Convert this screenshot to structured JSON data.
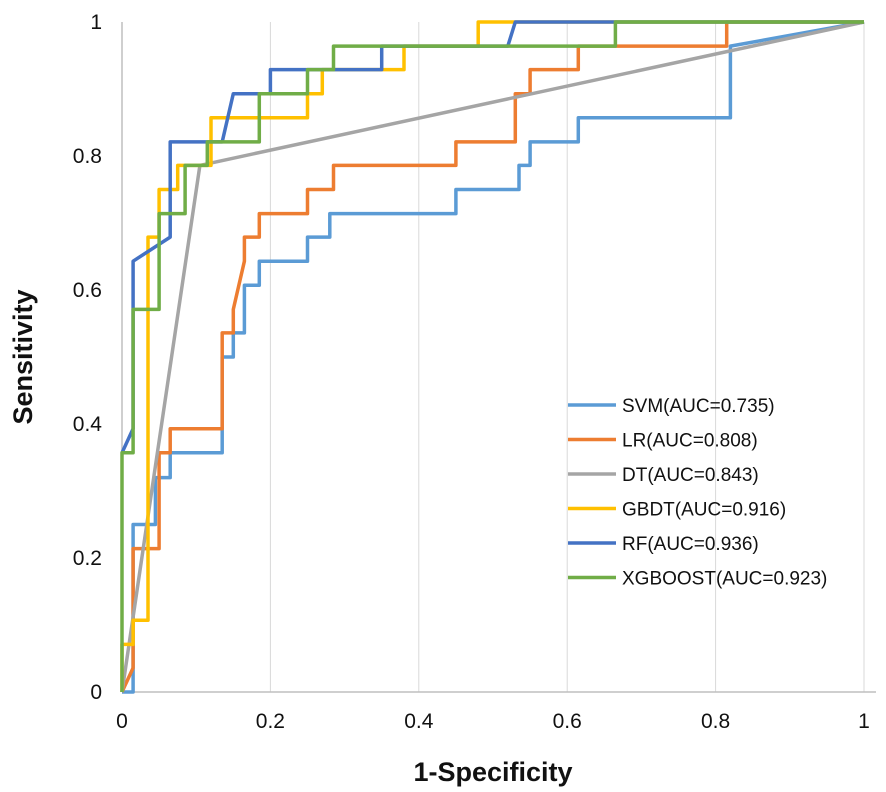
{
  "chart_data": {
    "type": "line",
    "title": "",
    "xlabel": "1-Specificity",
    "ylabel": "Sensitivity",
    "xlim": [
      0,
      1
    ],
    "ylim": [
      0,
      1
    ],
    "xticks": [
      "0",
      "0.2",
      "0.4",
      "0.6",
      "0.8",
      "1"
    ],
    "yticks": [
      "0",
      "0.2",
      "0.4",
      "0.6",
      "0.8",
      "1"
    ],
    "grid": "vertical",
    "legend_position": "bottom-right",
    "series": [
      {
        "name": "SVM(AUC=0.735)",
        "color": "#5b9bd5",
        "points": [
          [
            0,
            0
          ],
          [
            0.015,
            0
          ],
          [
            0.015,
            0.25
          ],
          [
            0.045,
            0.25
          ],
          [
            0.045,
            0.32
          ],
          [
            0.065,
            0.32
          ],
          [
            0.065,
            0.357
          ],
          [
            0.135,
            0.357
          ],
          [
            0.135,
            0.5
          ],
          [
            0.15,
            0.5
          ],
          [
            0.15,
            0.536
          ],
          [
            0.165,
            0.536
          ],
          [
            0.165,
            0.607
          ],
          [
            0.185,
            0.607
          ],
          [
            0.185,
            0.643
          ],
          [
            0.25,
            0.643
          ],
          [
            0.25,
            0.679
          ],
          [
            0.28,
            0.679
          ],
          [
            0.28,
            0.714
          ],
          [
            0.45,
            0.714
          ],
          [
            0.45,
            0.75
          ],
          [
            0.535,
            0.75
          ],
          [
            0.535,
            0.786
          ],
          [
            0.55,
            0.786
          ],
          [
            0.55,
            0.821
          ],
          [
            0.615,
            0.821
          ],
          [
            0.615,
            0.857
          ],
          [
            0.82,
            0.857
          ],
          [
            0.82,
            0.964
          ],
          [
            1,
            1
          ]
        ]
      },
      {
        "name": "LR(AUC=0.808)",
        "color": "#ed7d31",
        "points": [
          [
            0,
            0
          ],
          [
            0.015,
            0.036
          ],
          [
            0.015,
            0.214
          ],
          [
            0.05,
            0.214
          ],
          [
            0.05,
            0.357
          ],
          [
            0.065,
            0.357
          ],
          [
            0.065,
            0.393
          ],
          [
            0.135,
            0.393
          ],
          [
            0.135,
            0.536
          ],
          [
            0.15,
            0.536
          ],
          [
            0.15,
            0.571
          ],
          [
            0.165,
            0.643
          ],
          [
            0.165,
            0.679
          ],
          [
            0.185,
            0.679
          ],
          [
            0.185,
            0.714
          ],
          [
            0.25,
            0.714
          ],
          [
            0.25,
            0.75
          ],
          [
            0.285,
            0.75
          ],
          [
            0.285,
            0.786
          ],
          [
            0.45,
            0.786
          ],
          [
            0.45,
            0.821
          ],
          [
            0.53,
            0.821
          ],
          [
            0.53,
            0.893
          ],
          [
            0.55,
            0.893
          ],
          [
            0.55,
            0.929
          ],
          [
            0.615,
            0.929
          ],
          [
            0.615,
            0.964
          ],
          [
            0.815,
            0.964
          ],
          [
            0.815,
            1
          ],
          [
            1,
            1
          ]
        ]
      },
      {
        "name": "DT(AUC=0.843)",
        "color": "#a5a5a5",
        "points": [
          [
            0,
            0
          ],
          [
            0.105,
            0.786
          ],
          [
            1,
            1
          ]
        ]
      },
      {
        "name": "GBDT(AUC=0.916)",
        "color": "#ffc000",
        "points": [
          [
            0,
            0
          ],
          [
            0,
            0.071
          ],
          [
            0.015,
            0.071
          ],
          [
            0.015,
            0.107
          ],
          [
            0.035,
            0.107
          ],
          [
            0.035,
            0.679
          ],
          [
            0.05,
            0.679
          ],
          [
            0.05,
            0.75
          ],
          [
            0.075,
            0.75
          ],
          [
            0.075,
            0.786
          ],
          [
            0.12,
            0.786
          ],
          [
            0.12,
            0.857
          ],
          [
            0.25,
            0.857
          ],
          [
            0.25,
            0.893
          ],
          [
            0.27,
            0.893
          ],
          [
            0.27,
            0.929
          ],
          [
            0.38,
            0.929
          ],
          [
            0.38,
            0.964
          ],
          [
            0.48,
            0.964
          ],
          [
            0.48,
            1
          ],
          [
            1,
            1
          ]
        ]
      },
      {
        "name": "RF(AUC=0.936)",
        "color": "#4472c4",
        "points": [
          [
            0,
            0.357
          ],
          [
            0.015,
            0.393
          ],
          [
            0.015,
            0.643
          ],
          [
            0.065,
            0.679
          ],
          [
            0.065,
            0.821
          ],
          [
            0.135,
            0.821
          ],
          [
            0.15,
            0.893
          ],
          [
            0.2,
            0.893
          ],
          [
            0.2,
            0.929
          ],
          [
            0.35,
            0.929
          ],
          [
            0.35,
            0.964
          ],
          [
            0.52,
            0.964
          ],
          [
            0.53,
            1
          ],
          [
            1,
            1
          ]
        ]
      },
      {
        "name": "XGBOOST(AUC=0.923)",
        "color": "#70ad47",
        "points": [
          [
            0,
            0
          ],
          [
            0,
            0.357
          ],
          [
            0.015,
            0.357
          ],
          [
            0.015,
            0.571
          ],
          [
            0.05,
            0.571
          ],
          [
            0.05,
            0.714
          ],
          [
            0.085,
            0.714
          ],
          [
            0.085,
            0.786
          ],
          [
            0.115,
            0.786
          ],
          [
            0.115,
            0.821
          ],
          [
            0.185,
            0.821
          ],
          [
            0.185,
            0.893
          ],
          [
            0.25,
            0.893
          ],
          [
            0.25,
            0.929
          ],
          [
            0.285,
            0.929
          ],
          [
            0.285,
            0.964
          ],
          [
            0.665,
            0.964
          ],
          [
            0.665,
            1
          ],
          [
            1,
            1
          ]
        ]
      }
    ]
  }
}
